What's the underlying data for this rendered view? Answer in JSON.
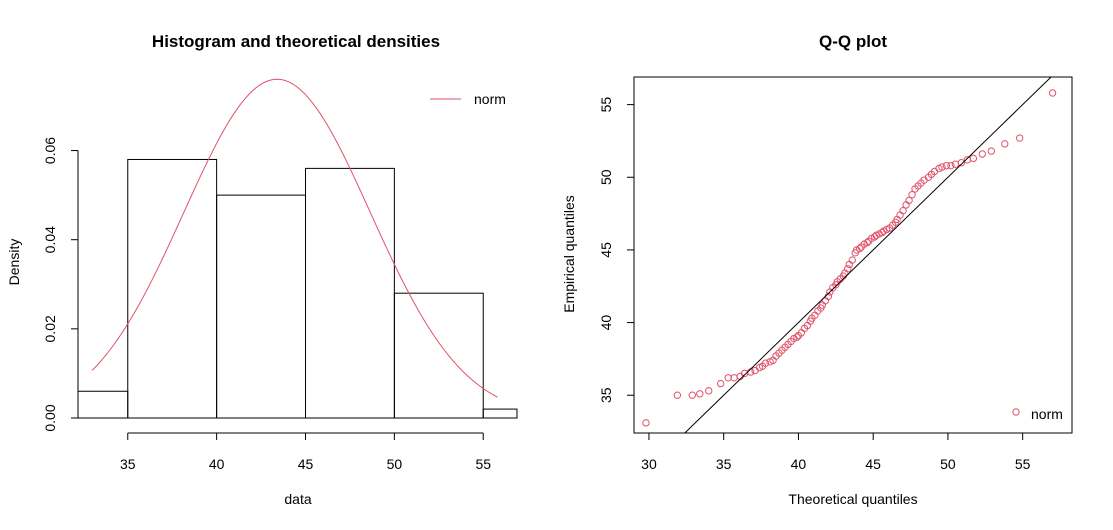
{
  "colors": {
    "fit": "#DF536B",
    "axis": "#000000"
  },
  "chart_data": [
    {
      "type": "bar",
      "title": "Histogram and theoretical densities",
      "xlabel": "data",
      "ylabel": "Density",
      "xlim": [
        32.2,
        56.9
      ],
      "ylim": [
        0,
        0.0765
      ],
      "x_ticks": [
        35,
        40,
        45,
        50,
        55
      ],
      "y_ticks": [
        0.0,
        0.02,
        0.04,
        0.06
      ],
      "y_tick_labels": [
        "0.00",
        "0.02",
        "0.04",
        "0.06"
      ],
      "bins": [
        {
          "start": 30,
          "end": 35,
          "density": 0.006
        },
        {
          "start": 35,
          "end": 40,
          "density": 0.058
        },
        {
          "start": 40,
          "end": 45,
          "density": 0.05
        },
        {
          "start": 45,
          "end": 50,
          "density": 0.056
        },
        {
          "start": 50,
          "end": 55,
          "density": 0.028
        },
        {
          "start": 55,
          "end": 60,
          "density": 0.002
        }
      ],
      "density_curve": {
        "distribution": "norm",
        "mean": 43.4,
        "sd": 5.25,
        "x_range": [
          33.0,
          55.8
        ]
      },
      "legend": {
        "position": "top-right",
        "entries": [
          "norm"
        ]
      },
      "grid": false
    },
    {
      "type": "scatter",
      "title": "Q-Q plot",
      "xlabel": "Theoretical quantiles",
      "ylabel": "Empirical quantiles",
      "xlim": [
        29,
        58.3
      ],
      "ylim": [
        32.4,
        56.9
      ],
      "x_ticks": [
        30,
        35,
        40,
        45,
        50,
        55
      ],
      "y_ticks": [
        35,
        40,
        45,
        50,
        55
      ],
      "reference_line": {
        "intercept": 0,
        "slope": 1
      },
      "legend": {
        "position": "bottom-right",
        "entries": [
          "norm"
        ]
      },
      "grid": false,
      "series": [
        {
          "name": "norm",
          "x": [
            29.8,
            31.9,
            32.9,
            33.4,
            34.0,
            34.8,
            35.3,
            35.7,
            36.1,
            36.4,
            36.8,
            37.1,
            37.4,
            37.6,
            37.8,
            38.1,
            38.3,
            38.5,
            38.7,
            38.9,
            39.1,
            39.3,
            39.5,
            39.7,
            39.9,
            40.0,
            40.2,
            40.4,
            40.6,
            40.8,
            40.9,
            41.1,
            41.3,
            41.5,
            41.6,
            41.8,
            42.0,
            42.1,
            42.3,
            42.5,
            42.6,
            42.8,
            43.0,
            43.1,
            43.3,
            43.4,
            43.6,
            43.8,
            43.9,
            44.1,
            44.2,
            44.4,
            44.6,
            44.7,
            44.9,
            45.1,
            45.2,
            45.4,
            45.6,
            45.7,
            45.9,
            46.1,
            46.3,
            46.5,
            46.6,
            46.8,
            47.0,
            47.2,
            47.4,
            47.6,
            47.8,
            48.0,
            48.2,
            48.4,
            48.7,
            48.9,
            49.1,
            49.4,
            49.6,
            49.9,
            50.2,
            50.5,
            50.9,
            51.3,
            51.7,
            52.3,
            52.9,
            53.8,
            54.8,
            57.0
          ],
          "y": [
            33.1,
            35.0,
            35.0,
            35.1,
            35.3,
            35.8,
            36.2,
            36.2,
            36.3,
            36.5,
            36.6,
            36.7,
            36.9,
            37.0,
            37.2,
            37.3,
            37.4,
            37.7,
            37.9,
            38.1,
            38.3,
            38.5,
            38.7,
            38.9,
            39.0,
            39.1,
            39.3,
            39.6,
            39.8,
            40.1,
            40.3,
            40.5,
            40.8,
            41.0,
            41.2,
            41.5,
            41.8,
            42.1,
            42.4,
            42.6,
            42.8,
            43.0,
            43.2,
            43.4,
            43.7,
            44.0,
            44.3,
            44.8,
            45.0,
            45.1,
            45.2,
            45.4,
            45.5,
            45.6,
            45.8,
            45.9,
            46.0,
            46.1,
            46.2,
            46.3,
            46.4,
            46.5,
            46.7,
            46.9,
            47.1,
            47.4,
            47.7,
            48.1,
            48.4,
            48.8,
            49.2,
            49.4,
            49.6,
            49.8,
            50.0,
            50.2,
            50.4,
            50.6,
            50.7,
            50.8,
            50.8,
            50.9,
            51.0,
            51.2,
            51.3,
            51.6,
            51.8,
            52.3,
            52.7,
            55.8
          ]
        }
      ]
    }
  ]
}
